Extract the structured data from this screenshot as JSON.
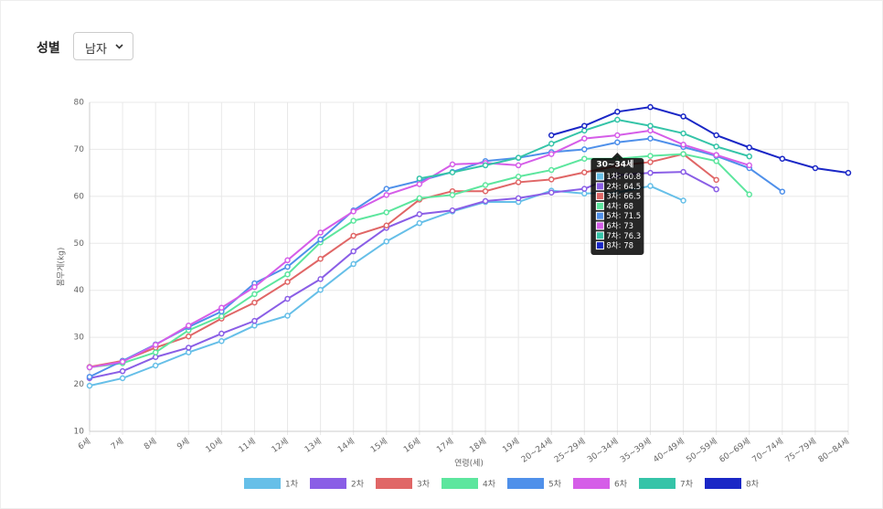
{
  "filter": {
    "label": "성별",
    "value": "남자"
  },
  "chart_data": {
    "type": "line",
    "x_label": "연령(세)",
    "y_label": "몸무게(kg)",
    "categories": [
      "6세",
      "7세",
      "8세",
      "9세",
      "10세",
      "11세",
      "12세",
      "13세",
      "14세",
      "15세",
      "16세",
      "17세",
      "18세",
      "19세",
      "20~24세",
      "25~29세",
      "30~34세",
      "35~39세",
      "40~49세",
      "50~59세",
      "60~69세",
      "70~74세",
      "75~79세",
      "80~84세"
    ],
    "ylim": [
      10,
      80
    ],
    "yticks": [
      10,
      20,
      30,
      40,
      50,
      60,
      70,
      80
    ],
    "grid": true,
    "series": [
      {
        "name": "1차",
        "color": "#66bfe8",
        "values": [
          19.7,
          21.3,
          24,
          26.8,
          29.2,
          32.5,
          34.6,
          40.1,
          45.6,
          50.4,
          54.3,
          56.8,
          58.8,
          58.8,
          61.2,
          60.6,
          60.8,
          62.2,
          59.1,
          null,
          null,
          null,
          null,
          null
        ]
      },
      {
        "name": "2차",
        "color": "#8a5ee6",
        "values": [
          21.3,
          22.8,
          25.8,
          27.8,
          30.8,
          33.5,
          38.2,
          42.4,
          48.3,
          53.3,
          56.2,
          57,
          59,
          59.6,
          60.8,
          61.6,
          64.5,
          65,
          65.2,
          61.5,
          null,
          null,
          null,
          null
        ]
      },
      {
        "name": "3차",
        "color": "#e06666",
        "values": [
          23.7,
          25,
          27.8,
          30.2,
          34,
          37.4,
          41.8,
          46.7,
          51.6,
          53.8,
          59.3,
          61.1,
          61.1,
          63,
          63.6,
          65.1,
          66.5,
          67.3,
          69,
          63.5,
          null,
          null,
          null,
          null
        ]
      },
      {
        "name": "4차",
        "color": "#5de69e",
        "values": [
          23.6,
          24.5,
          26.8,
          31.5,
          34.5,
          39.2,
          43.4,
          50.2,
          54.8,
          56.6,
          59.6,
          60.3,
          62.4,
          64.2,
          65.6,
          68,
          68,
          68.6,
          69,
          67.5,
          60.4,
          null,
          null,
          null
        ]
      },
      {
        "name": "5차",
        "color": "#4f90ea",
        "values": [
          21.6,
          25,
          28.5,
          32.2,
          35.5,
          41.5,
          45,
          50.8,
          57,
          61.6,
          63.3,
          65.2,
          67.5,
          68.2,
          69.4,
          70,
          71.5,
          72.3,
          70.5,
          68.6,
          66,
          61,
          null,
          null
        ]
      },
      {
        "name": "6차",
        "color": "#d55de8",
        "values": [
          23.6,
          24.8,
          28.4,
          32.5,
          36.3,
          40.7,
          46.4,
          52.3,
          56.8,
          60.3,
          62.6,
          66.8,
          67.1,
          66.6,
          69,
          72.3,
          73,
          74,
          71,
          68.8,
          66.6,
          null,
          null,
          null
        ]
      },
      {
        "name": "7차",
        "color": "#35c4a8",
        "values": [
          null,
          null,
          null,
          null,
          null,
          null,
          null,
          null,
          null,
          null,
          63.8,
          65.1,
          66.6,
          68.2,
          71.2,
          74,
          76.3,
          75,
          73.4,
          70.6,
          68.5,
          null,
          null,
          null
        ]
      },
      {
        "name": "8차",
        "color": "#1a27c6",
        "values": [
          null,
          null,
          null,
          null,
          null,
          null,
          null,
          null,
          null,
          null,
          null,
          null,
          null,
          null,
          73,
          75,
          78,
          79,
          77,
          73,
          70.4,
          68,
          66,
          65
        ]
      }
    ]
  }
}
